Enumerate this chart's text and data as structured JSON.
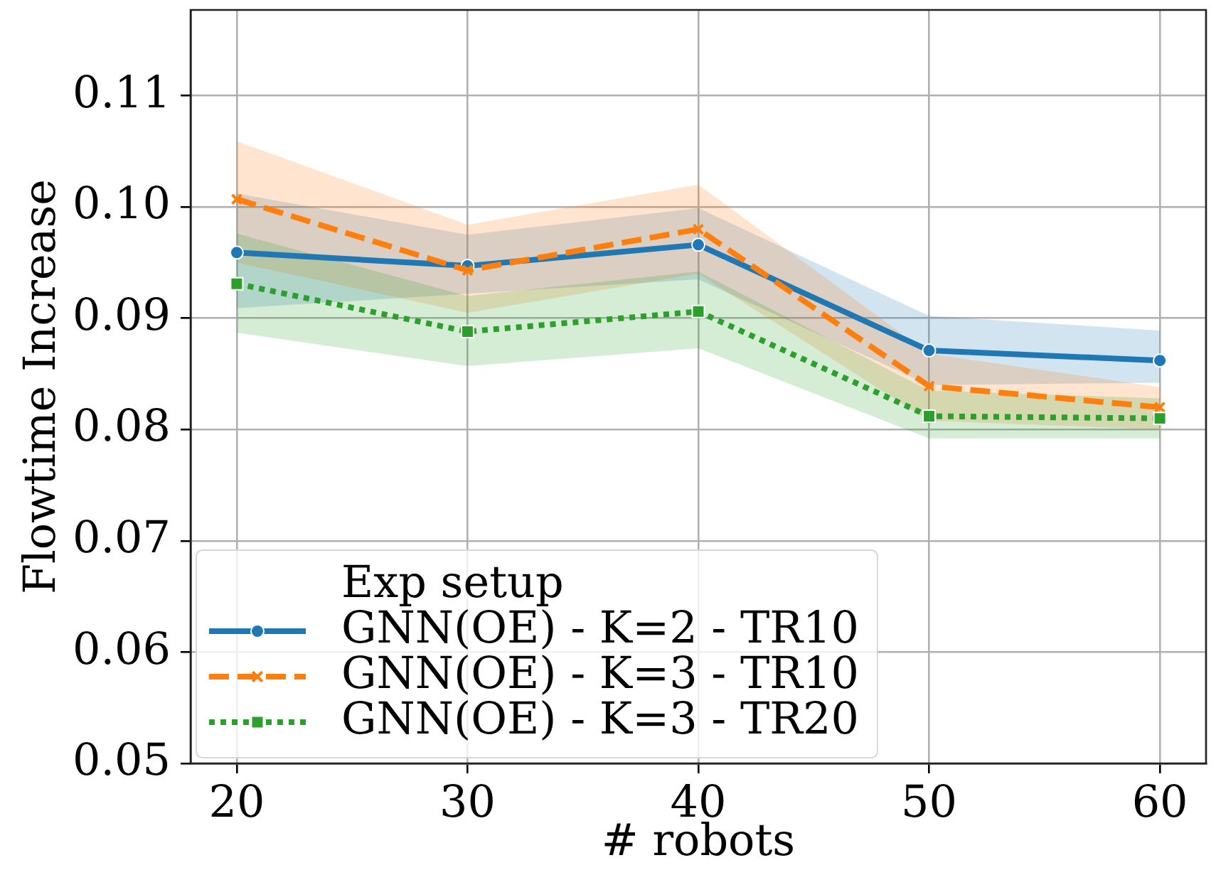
{
  "chart_data": {
    "type": "line",
    "xlabel": "# robots",
    "ylabel": "Flowtime Increase",
    "legend_title": "Exp setup",
    "legend": "bottom left",
    "grid": true,
    "x": [
      20,
      30,
      40,
      50,
      60
    ],
    "xlim": [
      18,
      62
    ],
    "xticks": [
      20,
      30,
      40,
      50,
      60
    ],
    "ylim": [
      0.05,
      0.1177
    ],
    "yticks": [
      0.05,
      0.06,
      0.07,
      0.08,
      0.09,
      {
        "value": 0.1,
        "label": "0.10"
      },
      0.11
    ],
    "series": [
      {
        "name": "GNN(OE) - K=2 - TR10",
        "color": "#1f77b4",
        "marker": "circle",
        "line_style": "solid",
        "values": [
          0.0959,
          0.0947,
          0.0966,
          0.0871,
          0.0862
        ],
        "lower": [
          0.0909,
          0.0922,
          0.0935,
          0.084,
          0.0842
        ],
        "upper": [
          0.1012,
          0.0975,
          0.0999,
          0.0902,
          0.0889
        ]
      },
      {
        "name": "GNN(OE) - K=3 - TR10",
        "color": "#ff7f0e",
        "marker": "cross",
        "line_style": "dashed",
        "values": [
          0.1007,
          0.0943,
          0.098,
          0.0839,
          0.082
        ],
        "lower": [
          0.095,
          0.0905,
          0.094,
          0.0808,
          0.08
        ],
        "upper": [
          0.1059,
          0.0984,
          0.102,
          0.0868,
          0.0838
        ]
      },
      {
        "name": "GNN(OE) - K=3 - TR20",
        "color": "#2ca02c",
        "marker": "square",
        "line_style": "dotted",
        "values": [
          0.0931,
          0.0888,
          0.0906,
          0.0812,
          0.081
        ],
        "lower": [
          0.0887,
          0.0857,
          0.0873,
          0.0792,
          0.0792
        ],
        "upper": [
          0.0976,
          0.092,
          0.0942,
          0.0835,
          0.0828
        ]
      }
    ]
  }
}
